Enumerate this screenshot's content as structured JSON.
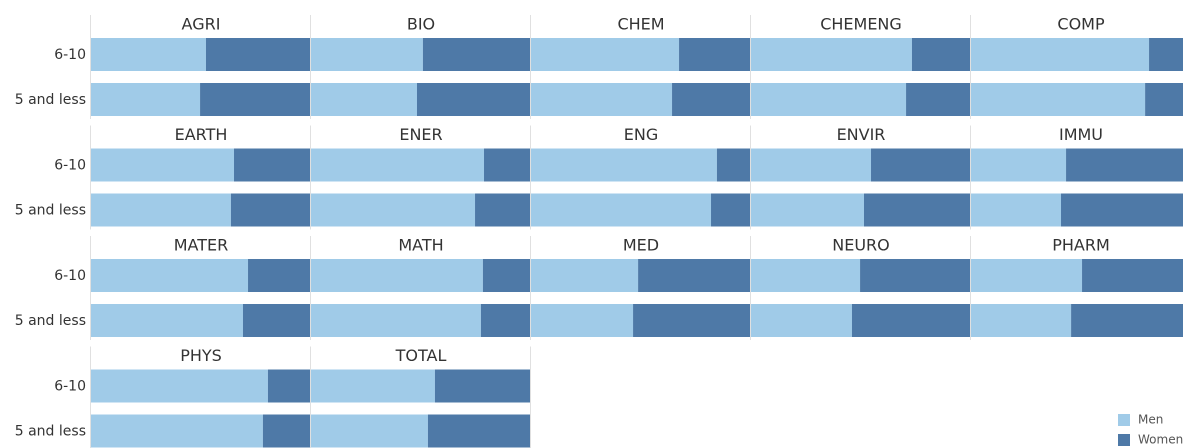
{
  "chart_data": {
    "type": "bar",
    "stacked": true,
    "orientation": "horizontal",
    "categories": [
      "6-10",
      "5 and less"
    ],
    "panels": [
      "AGRI",
      "BIO",
      "CHEM",
      "CHEMENG",
      "COMP",
      "EARTH",
      "ENER",
      "ENG",
      "ENVIR",
      "IMMU",
      "MATER",
      "MATH",
      "MED",
      "NEURO",
      "PHARM",
      "PHYS",
      "TOTAL"
    ],
    "xlim": [
      0,
      100
    ],
    "series": [
      {
        "name": "Men",
        "color": "#a0cbe8",
        "values": [
          [
            52.5,
            49.8
          ],
          [
            51.1,
            48.4
          ],
          [
            67.6,
            64.4
          ],
          [
            73.5,
            70.8
          ],
          [
            81.3,
            79.5
          ],
          [
            65.3,
            63.9
          ],
          [
            79.0,
            74.9
          ],
          [
            84.9,
            82.2
          ],
          [
            54.8,
            51.6
          ],
          [
            43.4,
            41.1
          ],
          [
            71.7,
            69.4
          ],
          [
            78.5,
            77.6
          ],
          [
            48.9,
            46.6
          ],
          [
            49.8,
            46.1
          ],
          [
            50.7,
            45.7
          ],
          [
            80.8,
            78.5
          ],
          [
            56.6,
            53.4
          ]
        ]
      },
      {
        "name": "Women",
        "color": "#4e79a7",
        "values": [
          [
            47.5,
            50.2
          ],
          [
            48.9,
            51.6
          ],
          [
            32.4,
            35.6
          ],
          [
            26.5,
            29.2
          ],
          [
            18.7,
            20.5
          ],
          [
            34.7,
            36.1
          ],
          [
            21.0,
            25.1
          ],
          [
            15.1,
            17.8
          ],
          [
            45.2,
            48.4
          ],
          [
            56.6,
            58.9
          ],
          [
            28.3,
            30.6
          ],
          [
            21.5,
            22.4
          ],
          [
            51.1,
            53.4
          ],
          [
            50.2,
            53.9
          ],
          [
            49.3,
            54.3
          ],
          [
            19.2,
            21.5
          ],
          [
            43.4,
            46.6
          ]
        ]
      }
    ]
  }
}
